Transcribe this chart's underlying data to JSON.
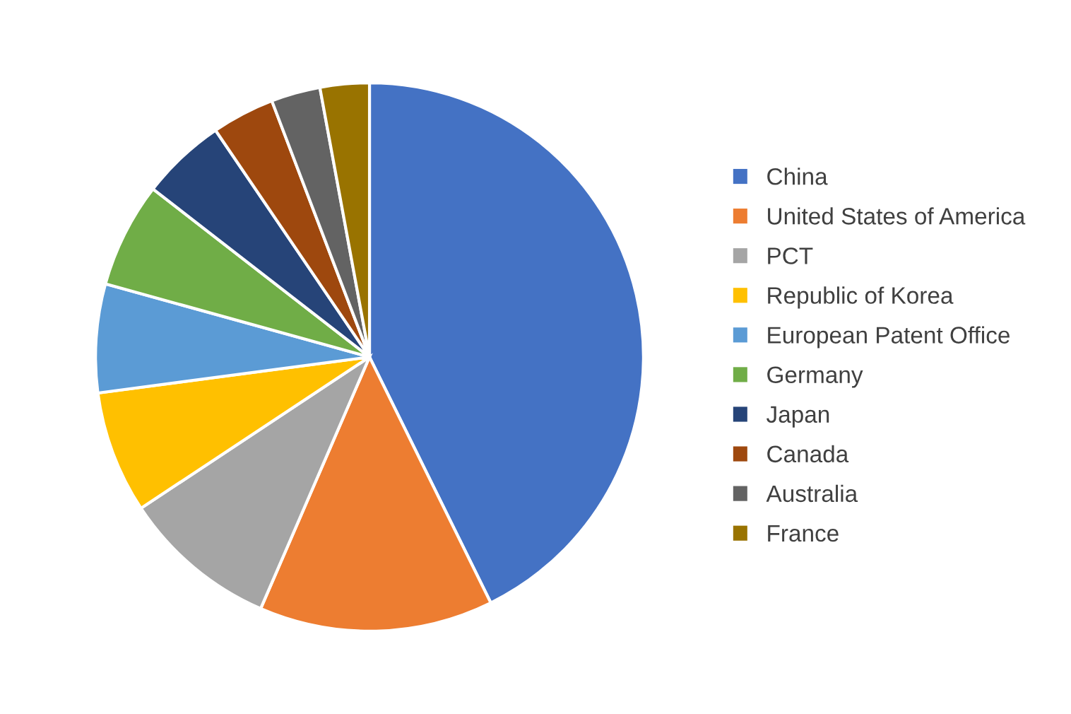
{
  "chart_data": {
    "type": "pie",
    "categories": [
      "China",
      "United States of America",
      "PCT",
      "Republic of Korea",
      "European Patent Office",
      "Germany",
      "Japan",
      "Canada",
      "Australia",
      "France"
    ],
    "values": [
      42.7,
      13.8,
      9.2,
      7.2,
      6.4,
      6.2,
      5.0,
      3.7,
      2.9,
      2.9
    ],
    "colors": [
      "#4472c4",
      "#ed7d31",
      "#a5a5a5",
      "#ffc000",
      "#5b9bd5",
      "#70ad47",
      "#264478",
      "#9e480e",
      "#636363",
      "#997300"
    ],
    "legend": "right"
  }
}
